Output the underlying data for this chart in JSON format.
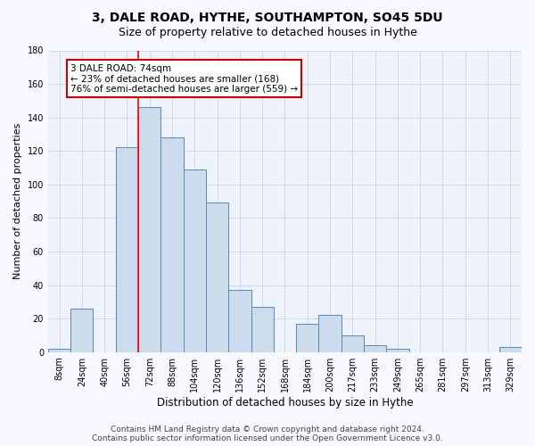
{
  "title": "3, DALE ROAD, HYTHE, SOUTHAMPTON, SO45 5DU",
  "subtitle": "Size of property relative to detached houses in Hythe",
  "xlabel": "Distribution of detached houses by size in Hythe",
  "ylabel": "Number of detached properties",
  "bar_color": "#ccdcec",
  "bar_edge_color": "#5588bb",
  "grid_color": "#d0d8ee",
  "bg_color": "#eef2fa",
  "fig_color": "#f8f8ff",
  "categories": [
    "8sqm",
    "24sqm",
    "40sqm",
    "56sqm",
    "72sqm",
    "88sqm",
    "104sqm",
    "120sqm",
    "136sqm",
    "152sqm",
    "168sqm",
    "184sqm",
    "200sqm",
    "217sqm",
    "233sqm",
    "249sqm",
    "265sqm",
    "281sqm",
    "297sqm",
    "313sqm",
    "329sqm"
  ],
  "values": [
    2,
    26,
    0,
    122,
    146,
    128,
    109,
    89,
    37,
    27,
    0,
    17,
    22,
    10,
    4,
    2,
    0,
    0,
    0,
    0,
    3
  ],
  "ylim": [
    0,
    180
  ],
  "yticks": [
    0,
    20,
    40,
    60,
    80,
    100,
    120,
    140,
    160,
    180
  ],
  "red_line_index": 4,
  "annotation_line1": "3 DALE ROAD: 74sqm",
  "annotation_line2": "← 23% of detached houses are smaller (168)",
  "annotation_line3": "76% of semi-detached houses are larger (559) →",
  "annotation_box_color": "#ffffff",
  "annotation_box_edge": "#cc0000",
  "footer_text": "Contains HM Land Registry data © Crown copyright and database right 2024.\nContains public sector information licensed under the Open Government Licence v3.0.",
  "title_fontsize": 10,
  "subtitle_fontsize": 9,
  "xlabel_fontsize": 8.5,
  "ylabel_fontsize": 8,
  "tick_fontsize": 7,
  "annotation_fontsize": 7.5,
  "footer_fontsize": 6.5
}
